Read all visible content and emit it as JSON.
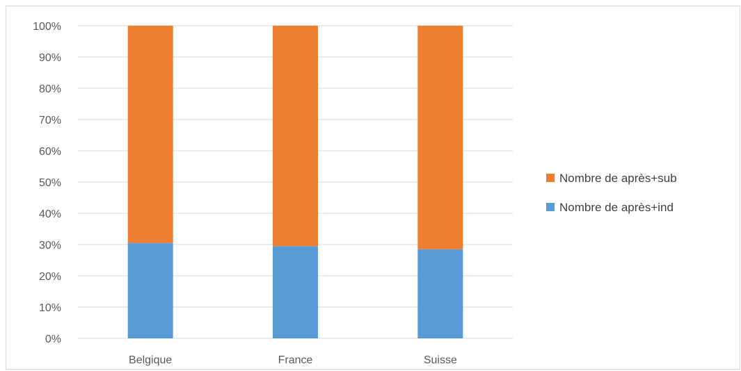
{
  "chart_data": {
    "type": "bar",
    "stacked": "percent",
    "categories": [
      "Belgique",
      "France",
      "Suisse"
    ],
    "series": [
      {
        "name": "Nombre de après+ind",
        "values": [
          30.5,
          29.5,
          28.5
        ],
        "color": "#5b9bd5"
      },
      {
        "name": "Nombre de après+sub",
        "values": [
          69.5,
          70.5,
          71.5
        ],
        "color": "#ed7d31"
      }
    ],
    "ylim": [
      0,
      100
    ],
    "y_ticks": [
      "0%",
      "10%",
      "20%",
      "30%",
      "40%",
      "50%",
      "60%",
      "70%",
      "80%",
      "90%",
      "100%"
    ],
    "grid": true,
    "legend_position": "right",
    "legend_order": [
      "Nombre de après+sub",
      "Nombre de après+ind"
    ]
  }
}
